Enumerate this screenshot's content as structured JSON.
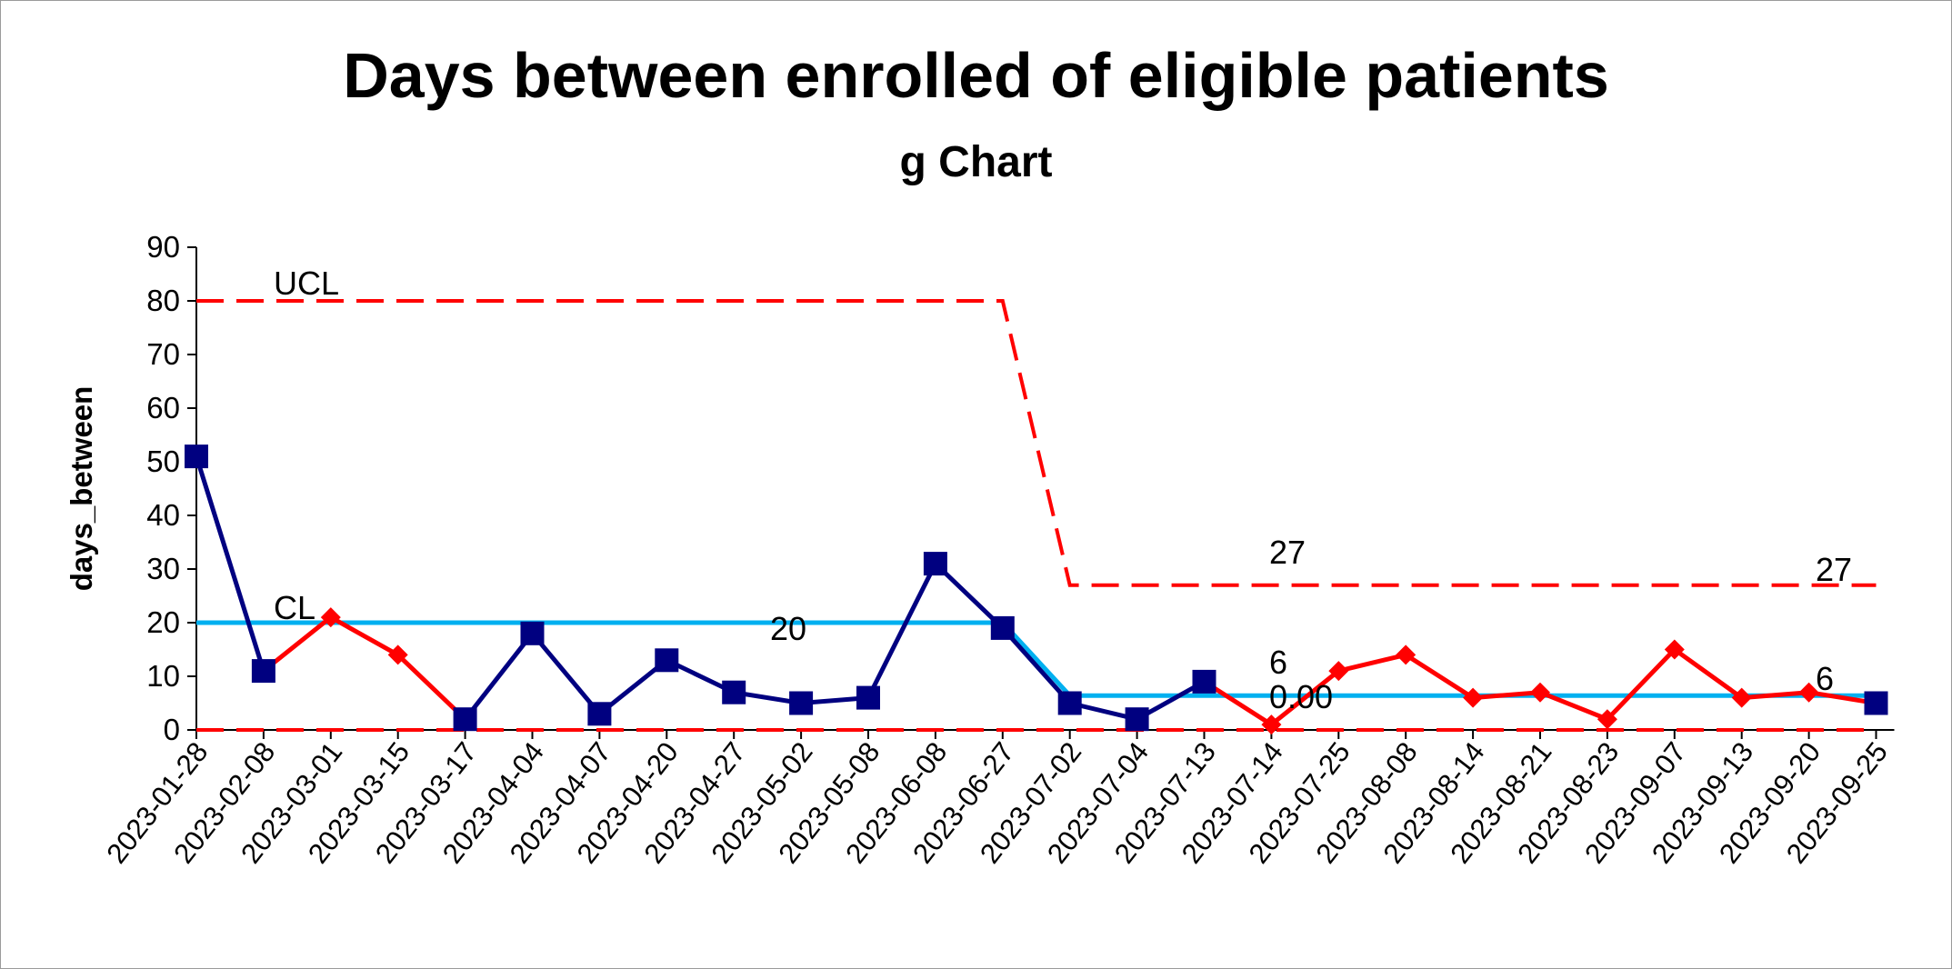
{
  "chart_data": {
    "type": "line",
    "title": "Days between enrolled of eligible patients",
    "subtitle": "g Chart",
    "xlabel": "",
    "ylabel": "days_between",
    "ylim": [
      0,
      90
    ],
    "yticks": [
      0,
      10,
      20,
      30,
      40,
      50,
      60,
      70,
      80,
      90
    ],
    "grid": false,
    "categories": [
      "2023-01-28",
      "2023-02-08",
      "2023-03-01",
      "2023-03-15",
      "2023-03-17",
      "2023-04-04",
      "2023-04-07",
      "2023-04-20",
      "2023-04-27",
      "2023-05-02",
      "2023-05-08",
      "2023-06-08",
      "2023-06-27",
      "2023-07-02",
      "2023-07-04",
      "2023-07-13",
      "2023-07-14",
      "2023-07-25",
      "2023-08-08",
      "2023-08-14",
      "2023-08-21",
      "2023-08-23",
      "2023-09-07",
      "2023-09-13",
      "2023-09-20",
      "2023-09-25"
    ],
    "values": [
      51,
      11,
      21,
      14,
      2,
      18,
      3,
      13,
      7,
      5,
      6,
      31,
      19,
      5,
      2,
      9,
      1,
      11,
      14,
      6,
      7,
      2,
      15,
      6,
      7,
      5
    ],
    "point_markers": [
      "square",
      "square",
      "diamond",
      "diamond",
      "square",
      "square",
      "square",
      "square",
      "square",
      "square",
      "square",
      "square",
      "square",
      "square",
      "square",
      "square",
      "diamond",
      "diamond",
      "diamond",
      "diamond",
      "diamond",
      "diamond",
      "diamond",
      "diamond",
      "diamond",
      "square"
    ],
    "ucl": [
      80,
      80,
      80,
      80,
      80,
      80,
      80,
      80,
      80,
      80,
      80,
      80,
      80,
      27,
      27,
      27,
      27,
      27,
      27,
      27,
      27,
      27,
      27,
      27,
      27,
      27
    ],
    "cl": [
      20,
      20,
      20,
      20,
      20,
      20,
      20,
      20,
      20,
      20,
      20,
      20,
      20,
      6.4,
      6.4,
      6.4,
      6.4,
      6.4,
      6.4,
      6.4,
      6.4,
      6.4,
      6.4,
      6.4,
      6.4,
      6.4
    ],
    "lcl": [
      0,
      0,
      0,
      0,
      0,
      0,
      0,
      0,
      0,
      0,
      0,
      0,
      0,
      0,
      0,
      0,
      0,
      0,
      0,
      0,
      0,
      0,
      0,
      0,
      0,
      0
    ],
    "annotations": {
      "ucl_label": "UCL",
      "cl_label": "CL",
      "cl_value_1": "20",
      "ucl_value_2": "27",
      "ucl_value_2_end": "27",
      "cl_value_2": "6",
      "cl_value_2_end": "6",
      "lcl_value_2": "0.00"
    },
    "colors": {
      "data_line": "#000080",
      "special_segment": "#ff0000",
      "limits": "#ff0000",
      "center_line": "#00b0f0",
      "axis": "#000000"
    }
  }
}
